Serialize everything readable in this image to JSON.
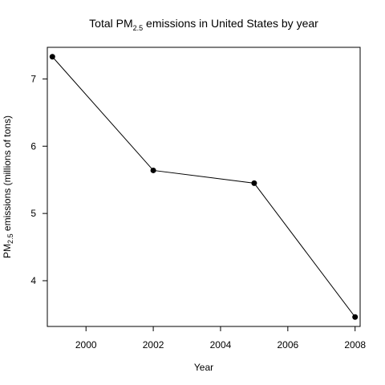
{
  "chart_data": {
    "type": "line",
    "title_parts": [
      "Total PM",
      "2.5",
      " emissions in United States by year"
    ],
    "xlabel": "Year",
    "ylabel_parts": [
      "PM",
      "2.5",
      " emissions (millions of tons)"
    ],
    "x": [
      1999,
      2002,
      2005,
      2008
    ],
    "series": [
      {
        "values": [
          7.33,
          5.64,
          5.45,
          3.46
        ]
      }
    ],
    "xlim": [
      1998.85,
      2008.15
    ],
    "ylim": [
      3.32,
      7.47
    ],
    "x_ticks": [
      2000,
      2002,
      2004,
      2006,
      2008
    ],
    "y_ticks": [
      4,
      5,
      6,
      7
    ],
    "grid": false,
    "line_color": "#000000",
    "marker_color": "#000000"
  }
}
